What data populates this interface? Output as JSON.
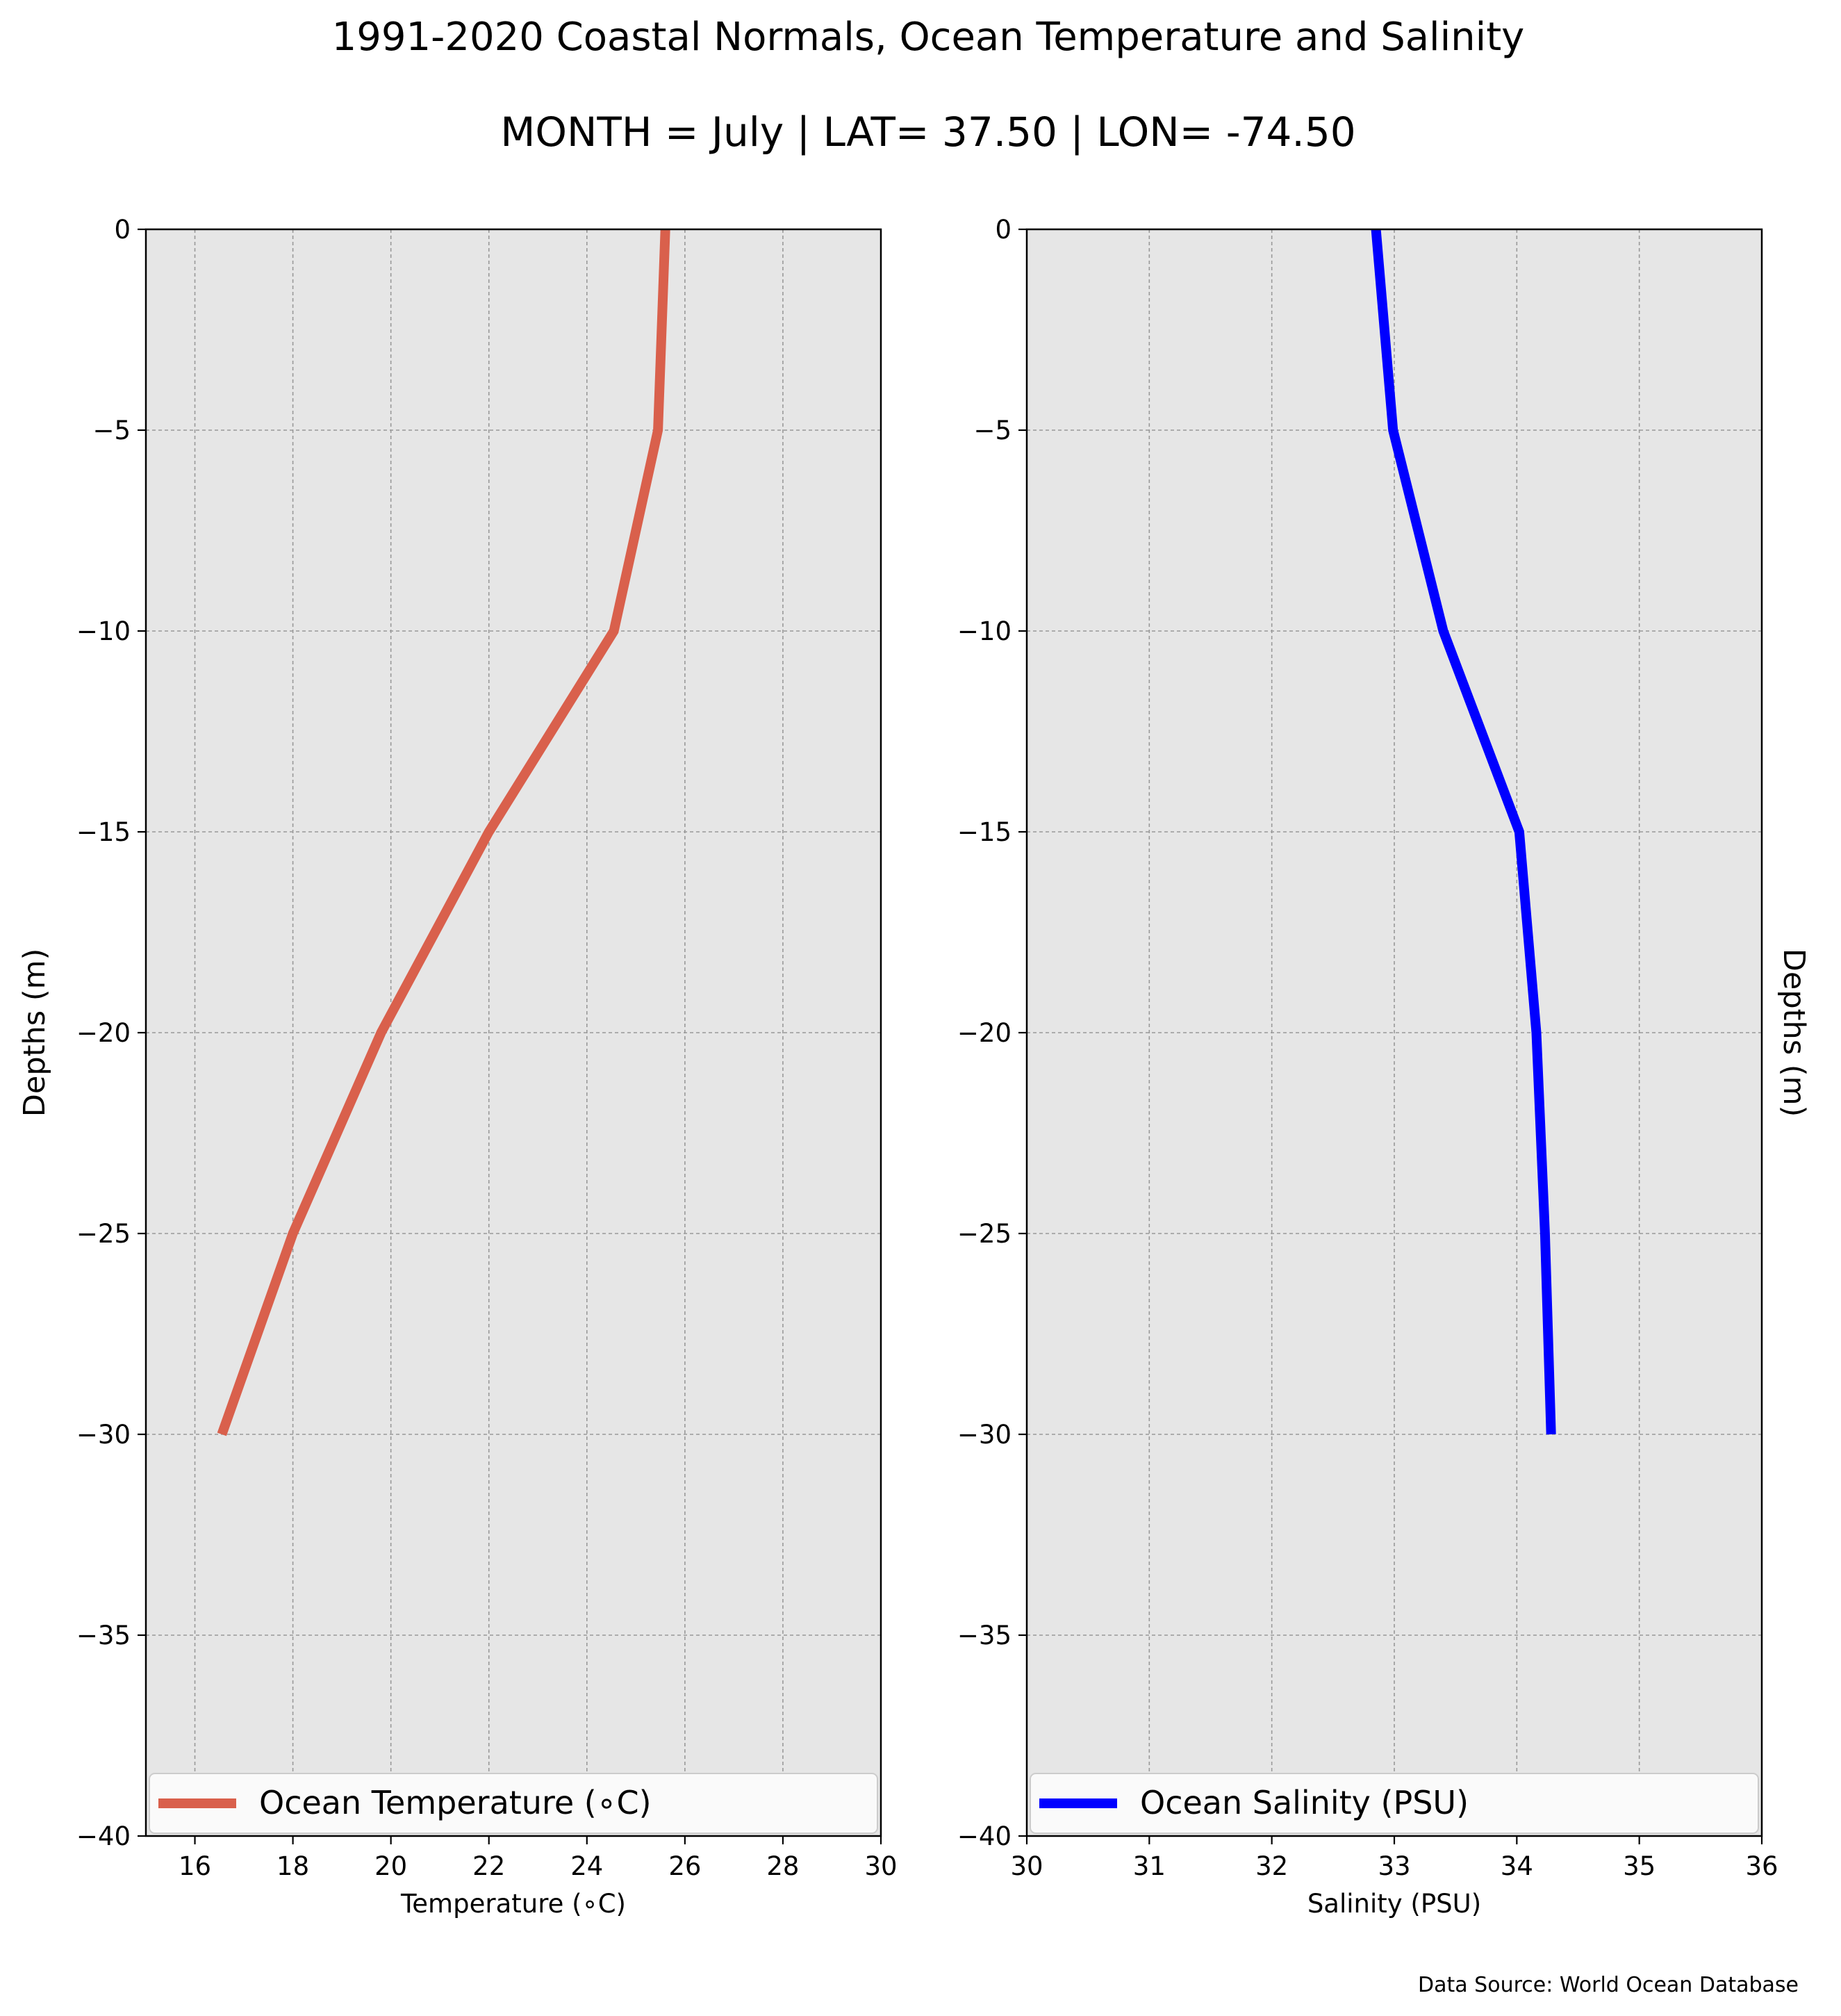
{
  "title": "1991-2020 Coastal Normals, Ocean Temperature and Salinity",
  "subtitle": "MONTH = July | LAT= 37.50 | LON= -74.50",
  "footer": "Data Source: World Ocean Database",
  "colors": {
    "panel_bg": "#e6e6e6",
    "grid": "#999999",
    "temperature": "#d9604c",
    "salinity": "#0000ff"
  },
  "chart_data": [
    {
      "type": "line",
      "xlabel": "Temperature (∘C)",
      "ylabel": "Depths (m)",
      "ylabel_side": "left",
      "xlim": [
        15,
        30
      ],
      "ylim": [
        -40,
        0
      ],
      "xticks": [
        16,
        18,
        20,
        22,
        24,
        26,
        28,
        30
      ],
      "xtick_labels": [
        "16",
        "18",
        "20",
        "22",
        "24",
        "26",
        "28",
        "30"
      ],
      "yticks": [
        0,
        -5,
        -10,
        -15,
        -20,
        -25,
        -30,
        -35,
        -40
      ],
      "ytick_labels": [
        "0",
        "−5",
        "−10",
        "−15",
        "−20",
        "−25",
        "−30",
        "−35",
        "−40"
      ],
      "grid": true,
      "legend": "lower center",
      "series": [
        {
          "name": "Ocean Temperature (∘C)",
          "color": "#d9604c",
          "x": [
            25.6,
            25.45,
            24.55,
            22.0,
            19.8,
            18.0,
            16.55
          ],
          "y": [
            0,
            -5,
            -10,
            -15,
            -20,
            -25,
            -30
          ]
        }
      ]
    },
    {
      "type": "line",
      "xlabel": "Salinity (PSU)",
      "ylabel": "Depths (m)",
      "ylabel_side": "right",
      "xlim": [
        30,
        36
      ],
      "ylim": [
        -40,
        0
      ],
      "xticks": [
        30,
        31,
        32,
        33,
        34,
        35,
        36
      ],
      "xtick_labels": [
        "30",
        "31",
        "32",
        "33",
        "34",
        "35",
        "36"
      ],
      "yticks": [
        0,
        -5,
        -10,
        -15,
        -20,
        -25,
        -30,
        -35,
        -40
      ],
      "ytick_labels": [
        "0",
        "−5",
        "−10",
        "−15",
        "−20",
        "−25",
        "−30",
        "−35",
        "−40"
      ],
      "grid": true,
      "legend": "lower center",
      "series": [
        {
          "name": "Ocean Salinity (PSU)",
          "color": "#0000ff",
          "x": [
            32.85,
            32.99,
            33.4,
            34.02,
            34.16,
            34.23,
            34.28
          ],
          "y": [
            0,
            -5,
            -10,
            -15,
            -20,
            -25,
            -30
          ]
        }
      ]
    }
  ]
}
